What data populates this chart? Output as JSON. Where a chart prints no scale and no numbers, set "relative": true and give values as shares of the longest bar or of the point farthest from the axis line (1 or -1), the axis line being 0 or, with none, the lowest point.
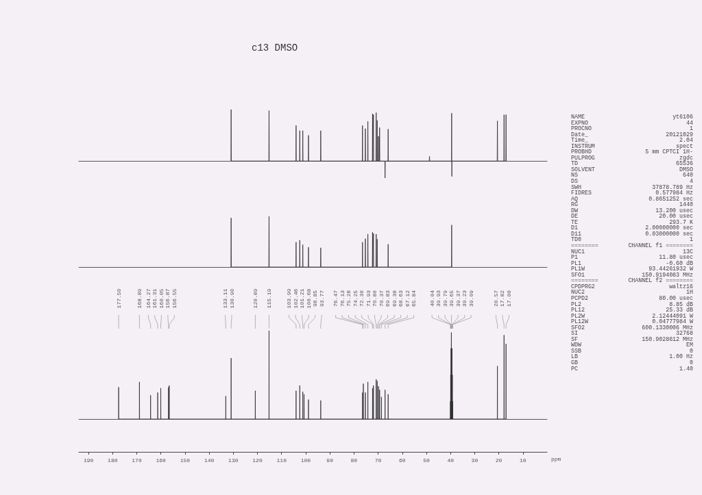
{
  "chart_data": [
    {
      "type": "line",
      "title": "c13 DMSO",
      "xlim": [
        194,
        0
      ],
      "tick_labels": false,
      "marker": "none",
      "relative": true,
      "series": [
        {
          "color": "#2e2e2e",
          "x": [
            131.0,
            130.9,
            130.8,
            115.29,
            115.19,
            115.09,
            104.09,
            103.99,
            103.89,
            102.56,
            102.46,
            102.36,
            101.31,
            101.21,
            101.11,
            98.95,
            98.85,
            98.75,
            93.87,
            93.77,
            93.67,
            76.57,
            76.47,
            76.37,
            75.38,
            75.28,
            75.18,
            74.35,
            74.25,
            74.15,
            72.4,
            72.3,
            72.2,
            72.03,
            71.93,
            71.83,
            70.9,
            70.8,
            70.7,
            70.47,
            70.37,
            70.27,
            69.93,
            69.83,
            69.73,
            69.48,
            69.38,
            69.28,
            67.22,
            67.12,
            67.02,
            65.94,
            65.84,
            65.74,
            48.8,
            48.7,
            48.6,
            39.6,
            39.52,
            39.45,
            39.4,
            20.67,
            20.57,
            20.47,
            17.92,
            17.82,
            17.72,
            17.1,
            17.0,
            16.9
          ],
          "values": [
            0,
            1,
            0,
            0,
            0.98,
            0,
            0,
            0.69,
            0,
            0,
            0.59,
            0,
            0,
            0.59,
            0,
            0,
            0.5,
            0,
            0,
            0.59,
            0,
            0,
            0.69,
            0,
            0,
            0.63,
            0,
            0,
            0.77,
            0,
            0,
            0.92,
            0,
            0,
            0.9,
            0,
            0,
            0.94,
            0,
            0,
            0.79,
            0,
            0,
            0.48,
            0,
            0,
            0.65,
            0,
            0,
            -0.33,
            0,
            0,
            0.62,
            0,
            0,
            0.09,
            0,
            0,
            0.93,
            -0.3,
            0,
            0,
            0.78,
            0,
            0,
            0.9,
            0,
            0,
            0.9,
            0
          ]
        }
      ]
    },
    {
      "type": "line",
      "xlim": [
        194,
        0
      ],
      "tick_labels": false,
      "marker": "none",
      "relative": true,
      "series": [
        {
          "color": "#2e2e2e",
          "x": [
            131.0,
            130.9,
            130.8,
            115.29,
            115.19,
            115.09,
            104.09,
            103.99,
            103.89,
            102.56,
            102.46,
            102.36,
            101.31,
            101.21,
            101.11,
            98.95,
            98.85,
            98.75,
            93.87,
            93.77,
            93.67,
            76.57,
            76.47,
            76.37,
            75.38,
            75.28,
            75.18,
            74.35,
            74.25,
            74.15,
            72.4,
            72.3,
            72.2,
            72.03,
            71.93,
            71.83,
            70.9,
            70.8,
            70.7,
            70.47,
            70.37,
            70.27,
            65.94,
            65.84,
            65.74,
            39.62,
            39.52,
            39.42
          ],
          "values": [
            0,
            0.97,
            0,
            0,
            1,
            0,
            0,
            0.49,
            0,
            0,
            0.53,
            0,
            0,
            0.44,
            0,
            0,
            0.39,
            0,
            0,
            0.38,
            0,
            0,
            0.49,
            0,
            0,
            0.56,
            0,
            0,
            0.65,
            0,
            0,
            0.69,
            0,
            0,
            0.66,
            0,
            0,
            0.65,
            0,
            0,
            0.55,
            0,
            0,
            0.45,
            0,
            0,
            0.83,
            0
          ]
        }
      ]
    },
    {
      "type": "line",
      "xlim": [
        194,
        0
      ],
      "xticks": [
        190,
        180,
        170,
        160,
        150,
        140,
        130,
        120,
        110,
        100,
        90,
        80,
        70,
        60,
        50,
        40,
        30,
        20,
        10
      ],
      "xlabel": "ppm",
      "tick_labels": "x",
      "marker": "none",
      "relative": true,
      "series": [
        {
          "color": "#2e2e2e",
          "x": [
            177.55,
            177.5,
            177.45,
            168.94,
            168.89,
            168.84,
            164.32,
            164.27,
            164.22,
            161.36,
            161.31,
            161.26,
            160.1,
            160.05,
            160.0,
            156.92,
            156.87,
            156.82,
            156.6,
            156.55,
            156.5,
            133.16,
            133.11,
            133.06,
            130.95,
            130.9,
            130.85,
            120.94,
            120.89,
            120.84,
            115.24,
            115.19,
            115.14,
            104.04,
            103.99,
            103.94,
            102.51,
            102.46,
            102.41,
            101.26,
            101.21,
            101.16,
            100.73,
            100.68,
            100.63,
            98.9,
            98.85,
            98.8,
            93.82,
            93.77,
            93.72,
            76.52,
            76.47,
            76.42,
            76.18,
            76.13,
            76.08,
            75.33,
            75.28,
            75.23,
            74.3,
            74.25,
            74.2,
            72.35,
            72.3,
            72.25,
            71.98,
            71.93,
            71.88,
            70.85,
            70.8,
            70.75,
            70.42,
            70.37,
            70.32,
            69.88,
            69.83,
            69.78,
            69.43,
            69.38,
            69.33,
            68.68,
            68.63,
            68.58,
            67.17,
            67.12,
            67.07,
            65.89,
            65.84,
            65.79,
            40.09,
            40.04,
            39.99,
            39.98,
            39.93,
            39.88,
            39.84,
            39.79,
            39.74,
            39.7,
            39.65,
            39.6,
            39.42,
            39.37,
            39.32,
            39.28,
            39.23,
            39.18,
            39.14,
            39.09,
            39.04,
            20.62,
            20.57,
            20.52,
            17.87,
            17.82,
            17.77,
            17.05,
            17.0,
            16.95
          ],
          "values": [
            0,
            0.36,
            0,
            0,
            0.42,
            0,
            0,
            0.27,
            0,
            0,
            0.3,
            0,
            0,
            0.35,
            0,
            0,
            0.36,
            0,
            0,
            0.38,
            0,
            0,
            0.26,
            0,
            0,
            0.69,
            0,
            0,
            0.32,
            0,
            0,
            1,
            0,
            0,
            0.32,
            0,
            0,
            0.38,
            0,
            0,
            0.31,
            0,
            0,
            0.28,
            0,
            0,
            0.22,
            0,
            0,
            0.21,
            0,
            0,
            0.3,
            0,
            0,
            0.4,
            0,
            0,
            0.3,
            0,
            0,
            0.42,
            0,
            0,
            0.35,
            0,
            0,
            0.38,
            0,
            0,
            0.45,
            0,
            0,
            0.43,
            0,
            0,
            0.37,
            0,
            0,
            0.33,
            0,
            0,
            0.25,
            0,
            0,
            0.33,
            0,
            0,
            0.28,
            0,
            0,
            0.2,
            0,
            0,
            0.5,
            0,
            0,
            0.8,
            0,
            0,
            0.98,
            0,
            0,
            0.8,
            0,
            0,
            0.5,
            0,
            0,
            0.2,
            0,
            0,
            0.6,
            0,
            0,
            0.95,
            0,
            0,
            0.85,
            0
          ]
        }
      ],
      "annotations": [
        "177.50",
        "168.89",
        "164.27",
        "161.31",
        "160.05",
        "156.87",
        "156.55",
        "133.11",
        "130.90",
        "120.89",
        "115.19",
        "103.99",
        "102.46",
        "101.21",
        "100.68",
        "98.85",
        "93.77",
        "76.47",
        "76.13",
        "75.28",
        "74.25",
        "72.30",
        "71.93",
        "70.80",
        "70.37",
        "69.83",
        "69.38",
        "68.63",
        "67.12",
        "65.84",
        "40.04",
        "39.93",
        "39.79",
        "39.65",
        "39.37",
        "39.23",
        "39.09",
        "20.57",
        "17.82",
        "17.00"
      ]
    },
    {
      "type": "other",
      "annotations": [
        "NAME yt6106",
        "EXPNO 44",
        "PROCNO 1",
        "Date_ 20121029",
        "Time_ 2.04",
        "INSTRUM spect",
        "PROBHD 5 mm CPTCI 1H-",
        "PULPROG zgdc",
        "TD 65536",
        "SOLVENT DMSO",
        "NS 640",
        "DS 4",
        "SWH 37878.789 Hz",
        "FIDRES 0.577984 Hz",
        "AQ 0.8651252 sec",
        "RG 1440",
        "DW 13.200 usec",
        "DE 20.00 usec",
        "TE 293.7 K",
        "D1 2.00000000 sec",
        "D11 0.03000000 sec",
        "TD0 1",
        "======== CHANNEL f1 ========",
        "NUC1 13C",
        "P1 11.80 usec",
        "PL1 -0.60 dB",
        "PL1W 93.44261932 W",
        "SFO1 150.9194083 MHz",
        "======== CHANNEL f2 ========",
        "CPDPRG2 waltz16",
        "NUC2 1H",
        "PCPD2 80.00 usec",
        "PL2 8.85 dB",
        "PL12 25.33 dB",
        "PL2W 2.12444091 W",
        "PL12W 0.04777984 W",
        "SFO2 600.1330006 MHz",
        "SI 32768",
        "SF 150.9028612 MHz",
        "WDW EM",
        "SSB 0",
        "LB 1.00 Hz",
        "GB 0",
        "PC 1.40"
      ]
    }
  ]
}
